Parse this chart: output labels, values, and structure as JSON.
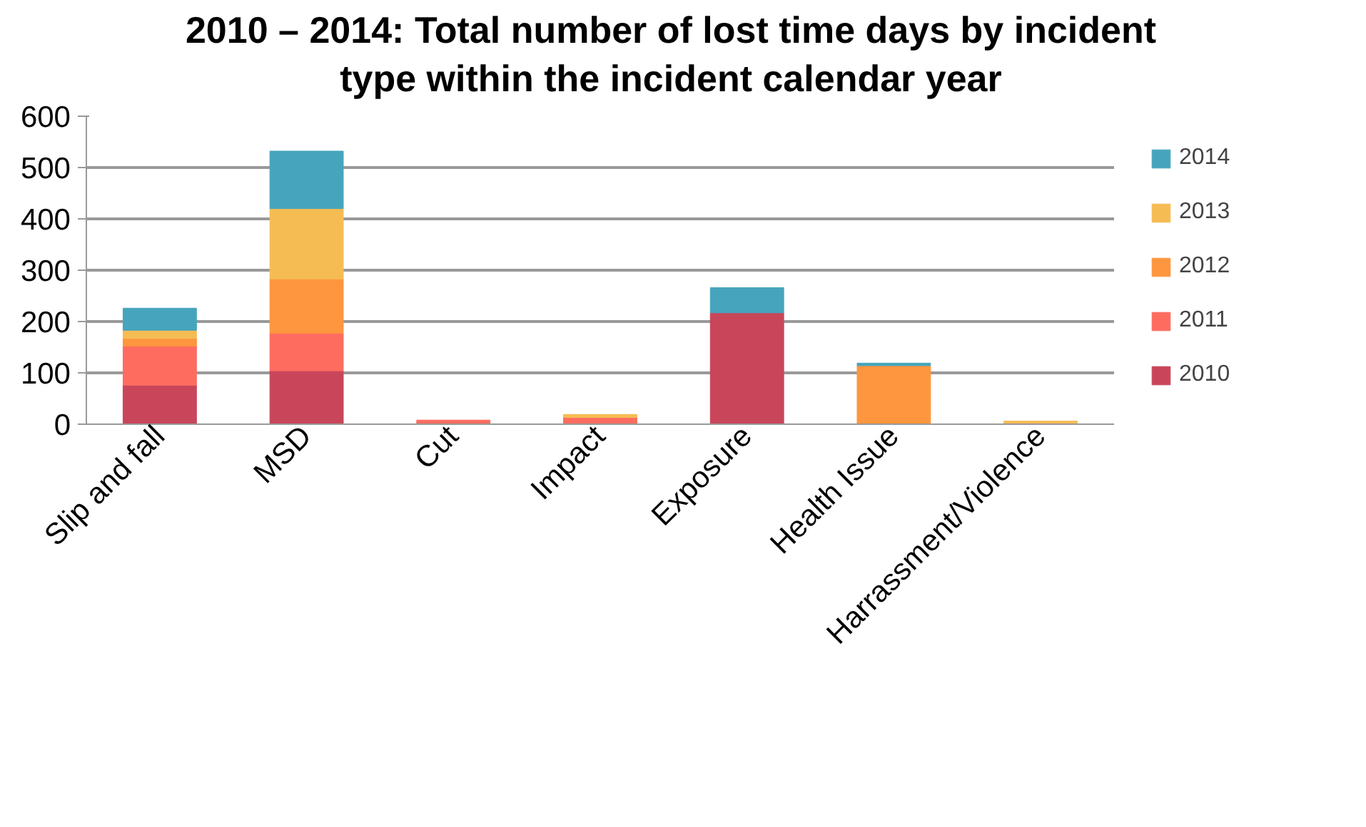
{
  "chart_data": {
    "type": "bar",
    "stacked": true,
    "title": "2010 – 2014: Total number of lost time days by incident type within the incident calendar year",
    "categories": [
      "Slip and fall",
      "MSD",
      "Cut",
      "Impact",
      "Exposure",
      "Health Issue",
      "Harrassment/Violence"
    ],
    "series": [
      {
        "name": "2010",
        "color": "#c9465a",
        "values": [
          76,
          104,
          0,
          0,
          217,
          0,
          0
        ]
      },
      {
        "name": "2011",
        "color": "#fe6c60",
        "values": [
          76,
          73,
          8,
          13,
          null,
          0,
          0
        ]
      },
      {
        "name": "2012",
        "color": "#fd963e",
        "values": [
          15,
          106,
          0,
          0,
          0,
          114,
          null
        ]
      },
      {
        "name": "2013",
        "color": "#f6bc54",
        "values": [
          16,
          137,
          0,
          6,
          0,
          0,
          6
        ]
      },
      {
        "name": "2014",
        "color": "#46a5bd",
        "values": [
          43,
          112,
          0,
          0,
          49,
          5,
          0
        ]
      }
    ],
    "ylim": [
      0,
      600
    ],
    "yticks": [
      0,
      100,
      200,
      300,
      400,
      500,
      600
    ],
    "grid": "y",
    "legend": "right"
  }
}
